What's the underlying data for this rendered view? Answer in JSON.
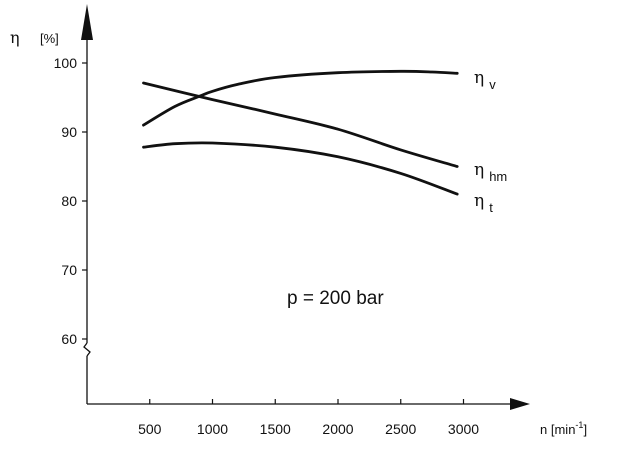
{
  "chart_data": {
    "type": "line",
    "ylabel_symbol": "η",
    "ylabel_unit": "[%]",
    "xlabel_symbol": "n",
    "xlabel_unit": "[min",
    "xlabel_unit_exp": "-1",
    "xlabel_unit_close": "]",
    "xlim": [
      0,
      3400
    ],
    "ylim": [
      55,
      105
    ],
    "y_axis_break": true,
    "grid": false,
    "x_ticks": [
      500,
      1000,
      1500,
      2000,
      2500,
      3000
    ],
    "y_ticks": [
      60,
      70,
      80,
      90,
      100
    ],
    "series": [
      {
        "name": "η",
        "subscript": "v",
        "x": [
          450,
          700,
          900,
          1000,
          1200,
          1500,
          2000,
          2500,
          2750,
          2950
        ],
        "y": [
          91.0,
          93.7,
          95.2,
          95.9,
          96.9,
          97.9,
          98.6,
          98.8,
          98.7,
          98.5
        ]
      },
      {
        "name": "η",
        "subscript": "hm",
        "x": [
          450,
          1000,
          1500,
          2000,
          2500,
          2950
        ],
        "y": [
          97.1,
          94.7,
          92.6,
          90.4,
          87.4,
          85.0
        ]
      },
      {
        "name": "η",
        "subscript": "t",
        "x": [
          450,
          700,
          1000,
          1500,
          2000,
          2500,
          2950
        ],
        "y": [
          87.8,
          88.3,
          88.4,
          87.8,
          86.4,
          84.0,
          81.0
        ]
      }
    ],
    "annotation": "p = 200 bar"
  }
}
